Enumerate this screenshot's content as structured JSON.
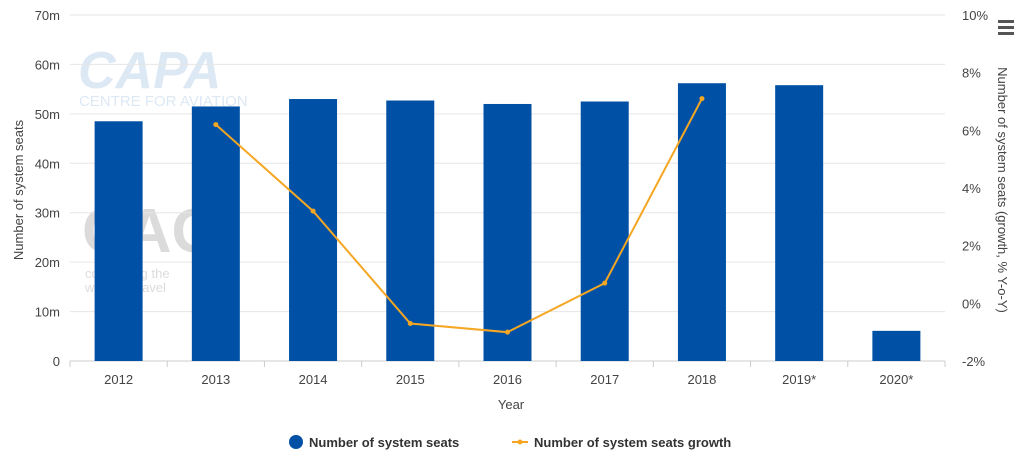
{
  "menu": {
    "icon": "hamburger-menu-icon"
  },
  "watermark": {
    "capa_logo": "CAPA",
    "capa_tagline": "CENTRE FOR AVIATION",
    "cag_logo": "CAG",
    "cag_tagline_1": "connecting the",
    "cag_tagline_2": "world of travel"
  },
  "colors": {
    "bars": "#0051a5",
    "line": "#f5a623",
    "grid": "#e6e6e6",
    "text": "#444444"
  },
  "chart_data": {
    "type": "bar",
    "categories": [
      "2012",
      "2013",
      "2014",
      "2015",
      "2016",
      "2017",
      "2018",
      "2019*",
      "2020*"
    ],
    "series": [
      {
        "name": "Number of system seats",
        "type": "bar",
        "axis": "left",
        "values": [
          48.5,
          51.5,
          53.0,
          52.7,
          52.0,
          52.5,
          56.2,
          55.8,
          6.1
        ]
      },
      {
        "name": "Number of system seats growth",
        "type": "line",
        "axis": "right",
        "values": [
          null,
          6.2,
          3.2,
          -0.7,
          -1.0,
          0.7,
          7.1,
          null,
          null
        ]
      }
    ],
    "xlabel": "Year",
    "ylabel": "Number of system seats",
    "y2label": "Number of system seats (growth, % Y-o-Y)",
    "ylim": [
      0,
      70
    ],
    "y2lim": [
      -2,
      10
    ],
    "yticks": [
      "0",
      "10m",
      "20m",
      "30m",
      "40m",
      "50m",
      "60m",
      "70m"
    ],
    "y2ticks": [
      "-2%",
      "0%",
      "2%",
      "4%",
      "6%",
      "8%",
      "10%"
    ],
    "grid": true,
    "legend": "bottom-center"
  }
}
